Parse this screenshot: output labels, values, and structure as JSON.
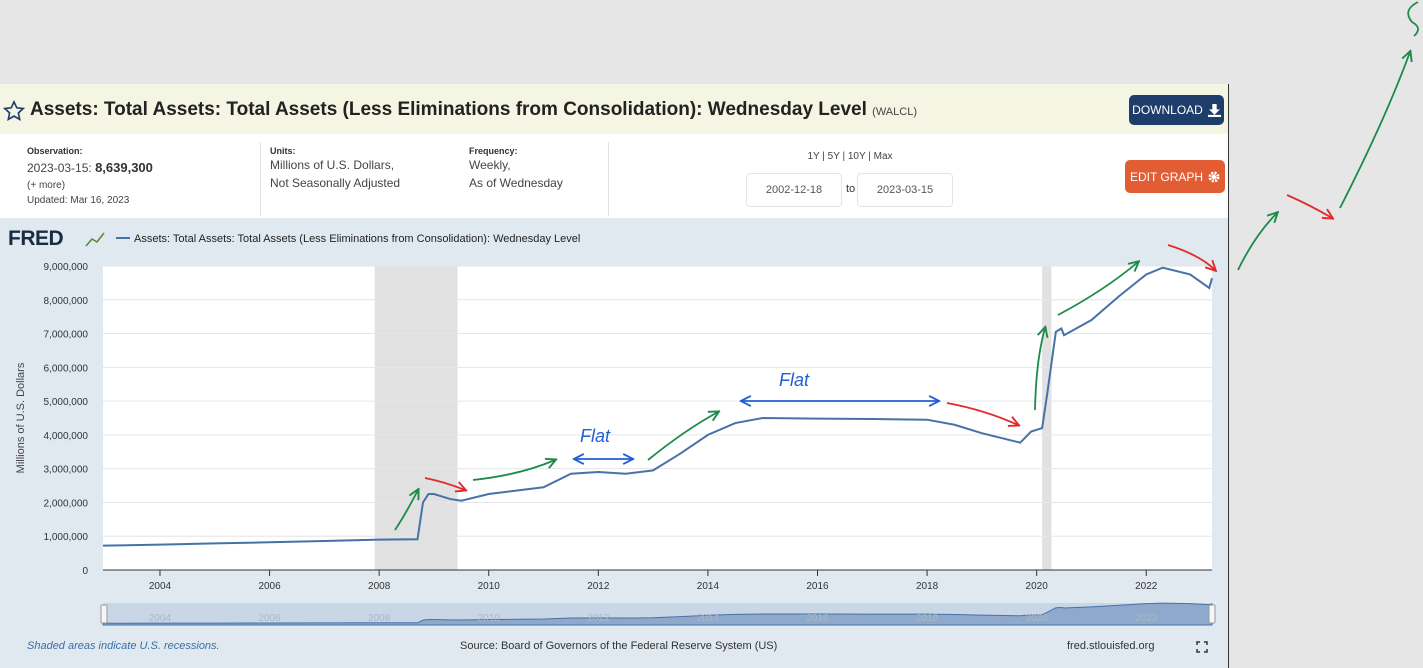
{
  "header": {
    "title": "Assets: Total Assets: Total Assets (Less Eliminations from Consolidation): Wednesday Level",
    "series_id": "(WALCL)",
    "download": "DOWNLOAD"
  },
  "info": {
    "observation_label": "Observation:",
    "observation_date": "2023-03-15:",
    "observation_value": "8,639,300",
    "more": "(+ more)",
    "updated": "Updated: Mar 16, 2023",
    "units_label": "Units:",
    "units": [
      "Millions of U.S. Dollars,",
      "Not Seasonally Adjusted"
    ],
    "frequency_label": "Frequency:",
    "frequency": [
      "Weekly,",
      "As of Wednesday"
    ],
    "ranges": "1Y | 5Y | 10Y | Max",
    "start_date": "2002-12-18",
    "to": "to",
    "end_date": "2023-03-15",
    "edit_graph": "EDIT GRAPH"
  },
  "chart_data": {
    "type": "line",
    "logo": "FRED",
    "ylabel": "Millions of U.S. Dollars",
    "series": [
      {
        "name": "Assets: Total Assets: Total Assets (Less Eliminations from Consolidation): Wednesday Level",
        "color": "#4572a7",
        "x": [
          2002.96,
          2004,
          2005,
          2006,
          2007,
          2008,
          2008.7,
          2008.8,
          2008.9,
          2009.0,
          2009.3,
          2009.5,
          2010,
          2010.5,
          2011,
          2011.5,
          2012,
          2012.5,
          2013,
          2013.5,
          2014,
          2014.5,
          2015,
          2016,
          2017,
          2018,
          2018.5,
          2019,
          2019.7,
          2019.9,
          2020.1,
          2020.2,
          2020.35,
          2020.45,
          2020.5,
          2021,
          2021.5,
          2022,
          2022.3,
          2022.8,
          2023.15,
          2023.2
        ],
        "values": [
          720000,
          750000,
          790000,
          820000,
          860000,
          900000,
          910000,
          2000000,
          2250000,
          2250000,
          2100000,
          2050000,
          2250000,
          2350000,
          2450000,
          2850000,
          2900000,
          2850000,
          2950000,
          3450000,
          4000000,
          4350000,
          4500000,
          4480000,
          4470000,
          4450000,
          4300000,
          4050000,
          3770000,
          4100000,
          4200000,
          5300000,
          7050000,
          7150000,
          6950000,
          7400000,
          8100000,
          8750000,
          8950000,
          8750000,
          8350000,
          8639300
        ]
      }
    ],
    "recessions": [
      [
        2007.92,
        2009.43
      ],
      [
        2020.1,
        2020.27
      ]
    ],
    "xlim": [
      2002.96,
      2023.2
    ],
    "xticks": [
      2004,
      2006,
      2008,
      2010,
      2012,
      2014,
      2016,
      2018,
      2020,
      2022
    ],
    "ylim": [
      0,
      9000000
    ],
    "yticks": [
      0,
      {
        "value": 1000000,
        "label": "1,000,000"
      },
      {
        "value": 2000000,
        "label": "2,000,000"
      },
      {
        "value": 3000000,
        "label": "3,000,000"
      },
      {
        "value": 4000000,
        "label": "4,000,000"
      },
      {
        "value": 5000000,
        "label": "5,000,000"
      },
      {
        "value": 6000000,
        "label": "6,000,000"
      },
      {
        "value": 7000000,
        "label": "7,000,000"
      },
      {
        "value": 8000000,
        "label": "8,000,000"
      },
      {
        "value": 9000000,
        "label": "9,000,000"
      }
    ],
    "grid": true,
    "annotations": [
      "Flat",
      "Flat"
    ]
  },
  "footer": {
    "note": "Shaded areas indicate U.S. recessions.",
    "source": "Source: Board of Governors of the Federal Reserve System (US)",
    "site": "fred.stlouisfed.org"
  }
}
